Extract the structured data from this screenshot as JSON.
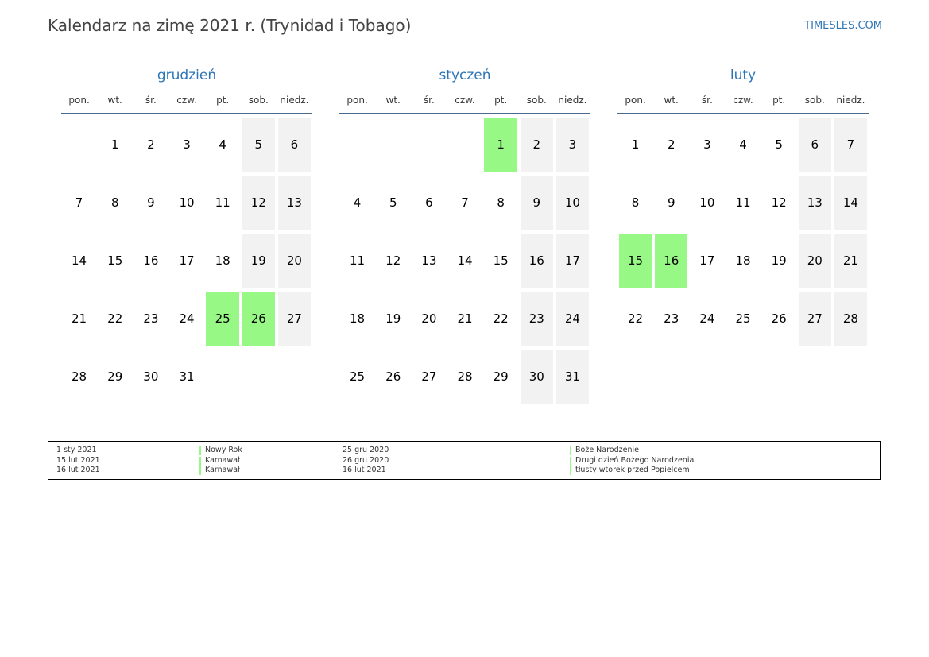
{
  "title": "Kalendarz na zimę 2021 r. (Trynidad i Tobago)",
  "site": "TIMESLES.COM",
  "weekdays": [
    "pon.",
    "wt.",
    "śr.",
    "czw.",
    "pt.",
    "sob.",
    "niedz."
  ],
  "colors": {
    "month_name": "#2e75b6",
    "holiday": "#98f885",
    "weekend": "#f2f2f2",
    "header_rule": "#4a6b8f"
  },
  "months": [
    {
      "name": "grudzień",
      "weeks": [
        [
          null,
          "1",
          "2",
          "3",
          "4",
          "5",
          "6"
        ],
        [
          "7",
          "8",
          "9",
          "10",
          "11",
          "12",
          "13"
        ],
        [
          "14",
          "15",
          "16",
          "17",
          "18",
          "19",
          "20"
        ],
        [
          "21",
          "22",
          "23",
          "24",
          "25",
          "26",
          "27"
        ],
        [
          "28",
          "29",
          "30",
          "31",
          null,
          null,
          null
        ]
      ],
      "holidays": [
        "25",
        "26"
      ]
    },
    {
      "name": "styczeń",
      "weeks": [
        [
          null,
          null,
          null,
          null,
          "1",
          "2",
          "3"
        ],
        [
          "4",
          "5",
          "6",
          "7",
          "8",
          "9",
          "10"
        ],
        [
          "11",
          "12",
          "13",
          "14",
          "15",
          "16",
          "17"
        ],
        [
          "18",
          "19",
          "20",
          "21",
          "22",
          "23",
          "24"
        ],
        [
          "25",
          "26",
          "27",
          "28",
          "29",
          "30",
          "31"
        ]
      ],
      "holidays": [
        "1"
      ]
    },
    {
      "name": "luty",
      "weeks": [
        [
          "1",
          "2",
          "3",
          "4",
          "5",
          "6",
          "7"
        ],
        [
          "8",
          "9",
          "10",
          "11",
          "12",
          "13",
          "14"
        ],
        [
          "15",
          "16",
          "17",
          "18",
          "19",
          "20",
          "21"
        ],
        [
          "22",
          "23",
          "24",
          "25",
          "26",
          "27",
          "28"
        ]
      ],
      "holidays": [
        "15",
        "16"
      ]
    }
  ],
  "legend": {
    "left": [
      {
        "date": "1 sty 2021",
        "name": "Nowy Rok"
      },
      {
        "date": "15 lut 2021",
        "name": "Karnawał"
      },
      {
        "date": "16 lut 2021",
        "name": "Karnawał"
      }
    ],
    "right": [
      {
        "date": "25 gru 2020",
        "name": "Boże Narodzenie"
      },
      {
        "date": "26 gru 2020",
        "name": "Drugi dzień Bożego Narodzenia"
      },
      {
        "date": "16 lut 2021",
        "name": "tłusty wtorek przed Popielcem"
      }
    ]
  }
}
